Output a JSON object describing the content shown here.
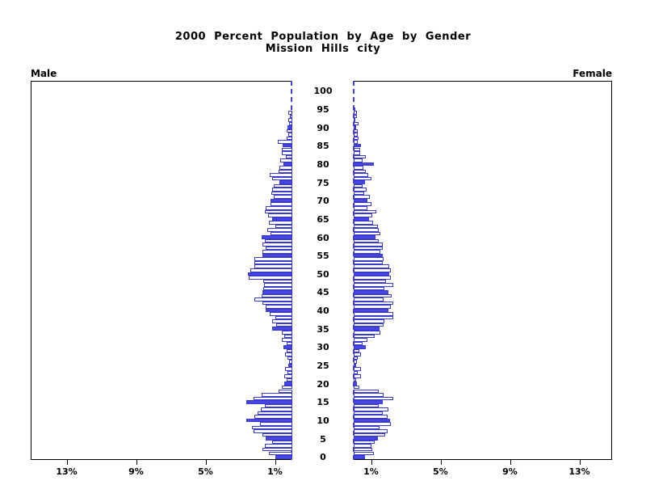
{
  "title": {
    "line1": "2000 Percent Population by Age by Gender",
    "line2": "Mission Hills city"
  },
  "panel_labels": {
    "left": "Male",
    "right": "Female"
  },
  "axis": {
    "x_tick_values": [
      1,
      5,
      9,
      13
    ],
    "x_tick_labels_left": [
      "13%",
      "9%",
      "5%",
      "1%"
    ],
    "x_tick_labels_right": [
      "1%",
      "5%",
      "9%",
      "13%"
    ],
    "x_max_percent": 15,
    "age_min": 0,
    "age_max": 100,
    "age_tick_step": 5,
    "age_tick_labels": [
      "0",
      "5",
      "10",
      "15",
      "20",
      "25",
      "30",
      "35",
      "40",
      "45",
      "50",
      "55",
      "60",
      "65",
      "70",
      "75",
      "80",
      "85",
      "90",
      "95",
      "100"
    ]
  },
  "colors": {
    "bar_fill_solid": "#4747e0",
    "bar_outline": "#3a3ad0",
    "bar_fill_empty": "#ffffff",
    "frame": "#000000",
    "text": "#000000"
  },
  "chart_data": {
    "type": "bar",
    "variant": "population-pyramid",
    "title": "2000 Percent Population by Age by Gender — Mission Hills city",
    "unit": "percent of total population",
    "ages": "0-100 by single year, solid bar at every multiple of 5",
    "highlight_every": 5,
    "xlim_each_side": [
      0,
      15
    ],
    "series": [
      {
        "name": "Male",
        "values": [
          1.0,
          1.35,
          1.7,
          1.6,
          1.15,
          1.55,
          1.7,
          2.25,
          2.35,
          1.85,
          2.65,
          2.2,
          2.0,
          1.8,
          1.6,
          2.65,
          2.25,
          1.75,
          0.8,
          0.6,
          0.45,
          0.33,
          0.48,
          0.29,
          0.4,
          0.25,
          0.2,
          0.26,
          0.42,
          0.31,
          0.5,
          0.34,
          0.62,
          0.47,
          0.59,
          1.16,
          0.93,
          1.16,
          0.98,
          1.32,
          1.55,
          1.55,
          1.74,
          2.17,
          1.78,
          1.74,
          1.67,
          1.63,
          1.66,
          2.5,
          2.55,
          2.4,
          2.2,
          2.17,
          2.17,
          1.7,
          1.74,
          1.52,
          1.7,
          1.58,
          1.78,
          1.27,
          1.43,
          0.96,
          1.36,
          1.16,
          1.4,
          1.58,
          1.55,
          1.27,
          1.24,
          1.09,
          1.2,
          1.16,
          1.09,
          0.74,
          1.16,
          1.3,
          0.79,
          0.74,
          0.5,
          0.68,
          0.37,
          0.59,
          0.62,
          0.56,
          0.84,
          0.31,
          0.25,
          0.33,
          0.28,
          0.19,
          0.22,
          0.12,
          0.22,
          0,
          0,
          0,
          0,
          0,
          0
        ]
      },
      {
        "name": "Female",
        "values": [
          0.65,
          1.15,
          1.05,
          1.0,
          1.2,
          1.4,
          1.8,
          1.95,
          1.5,
          2.15,
          2.1,
          1.95,
          1.65,
          2.0,
          1.45,
          1.65,
          2.3,
          1.7,
          1.45,
          0.3,
          0.2,
          0.16,
          0.43,
          0.23,
          0.4,
          0.12,
          0.2,
          0.25,
          0.4,
          0.3,
          0.7,
          0.5,
          0.78,
          1.2,
          1.55,
          1.5,
          1.7,
          1.78,
          2.3,
          2.3,
          2.0,
          2.15,
          2.3,
          1.7,
          2.2,
          2.0,
          1.75,
          2.3,
          1.85,
          2.15,
          2.05,
          2.15,
          2.05,
          1.65,
          1.7,
          1.65,
          1.55,
          1.65,
          1.65,
          1.45,
          1.25,
          1.55,
          1.45,
          1.4,
          1.1,
          0.9,
          1.05,
          1.3,
          0.8,
          1.0,
          0.78,
          0.95,
          0.62,
          0.75,
          0.5,
          0.65,
          1.0,
          0.85,
          0.7,
          0.55,
          1.15,
          0.5,
          0.68,
          0.37,
          0.37,
          0.42,
          0.25,
          0.28,
          0.22,
          0.25,
          0.16,
          0.28,
          0.1,
          0.2,
          0.2,
          0.1,
          0,
          0,
          0,
          0,
          0
        ]
      }
    ]
  }
}
